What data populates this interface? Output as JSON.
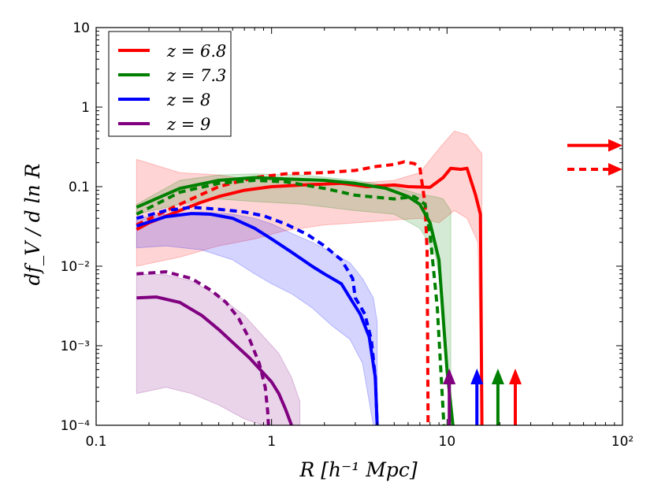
{
  "chart_data": {
    "type": "line",
    "xlabel": "R [h⁻¹ Mpc]",
    "ylabel": "df_V / d ln R",
    "xscale": "log",
    "yscale": "log",
    "xlim": [
      0.1,
      100
    ],
    "ylim": [
      0.0001,
      10
    ],
    "grid": false,
    "legend_position": "top-left",
    "x_tick_labels": [
      "0.1",
      "1",
      "10",
      "10²"
    ],
    "y_tick_labels": [
      "10⁻⁴",
      "10⁻³",
      "10⁻²",
      "0.1",
      "1",
      "10"
    ],
    "x_ticks": [
      0.1,
      1,
      10,
      100
    ],
    "y_ticks": [
      0.0001,
      0.001,
      0.01,
      0.1,
      1,
      10
    ],
    "series": [
      {
        "name": "z=6.8",
        "color": "#ff0000",
        "solid": [
          [
            0.17,
            0.029
          ],
          [
            0.2,
            0.035
          ],
          [
            0.3,
            0.05
          ],
          [
            0.4,
            0.064
          ],
          [
            0.5,
            0.075
          ],
          [
            0.7,
            0.09
          ],
          [
            1.0,
            0.1
          ],
          [
            1.5,
            0.105
          ],
          [
            2.5,
            0.11
          ],
          [
            3.5,
            0.1
          ],
          [
            5.0,
            0.105
          ],
          [
            6.0,
            0.1
          ],
          [
            8.0,
            0.098
          ],
          [
            9.5,
            0.13
          ],
          [
            10.5,
            0.17
          ],
          [
            12,
            0.165
          ],
          [
            13,
            0.17
          ],
          [
            14.5,
            0.08
          ],
          [
            15.5,
            0.045
          ],
          [
            15.8,
            0.0001
          ]
        ],
        "dashed": [
          [
            0.17,
            0.033
          ],
          [
            0.3,
            0.06
          ],
          [
            0.5,
            0.1
          ],
          [
            0.8,
            0.13
          ],
          [
            1.2,
            0.145
          ],
          [
            2.0,
            0.15
          ],
          [
            3.0,
            0.16
          ],
          [
            4.0,
            0.18
          ],
          [
            5.0,
            0.19
          ],
          [
            5.7,
            0.205
          ],
          [
            6.5,
            0.195
          ],
          [
            7.0,
            0.175
          ],
          [
            7.5,
            0.06
          ],
          [
            7.7,
            0.015
          ],
          [
            7.8,
            0.0001
          ]
        ],
        "band": [
          [
            0.17,
            0.01,
            0.22
          ],
          [
            0.3,
            0.013,
            0.15
          ],
          [
            0.5,
            0.018,
            0.14
          ],
          [
            0.8,
            0.022,
            0.12
          ],
          [
            1.2,
            0.028,
            0.12
          ],
          [
            2.0,
            0.033,
            0.11
          ],
          [
            3.0,
            0.035,
            0.11
          ],
          [
            5.0,
            0.038,
            0.12
          ],
          [
            7.0,
            0.04,
            0.15
          ],
          [
            9.0,
            0.035,
            0.3
          ],
          [
            11,
            0.05,
            0.5
          ],
          [
            13,
            0.04,
            0.45
          ],
          [
            15,
            0.02,
            0.3
          ],
          [
            15.8,
            0.0001,
            0.26
          ]
        ],
        "arrow_x": 24.5,
        "offscale_arrows": [
          {
            "style": "solid",
            "y": 0.33
          },
          {
            "style": "dashed",
            "y": 0.165
          }
        ]
      },
      {
        "name": "z=7.3",
        "color": "#008000",
        "solid": [
          [
            0.17,
            0.055
          ],
          [
            0.3,
            0.095
          ],
          [
            0.5,
            0.12
          ],
          [
            0.8,
            0.13
          ],
          [
            1.2,
            0.125
          ],
          [
            2.0,
            0.12
          ],
          [
            3.0,
            0.11
          ],
          [
            4.5,
            0.095
          ],
          [
            6.0,
            0.075
          ],
          [
            7.0,
            0.06
          ],
          [
            8.0,
            0.035
          ],
          [
            9.0,
            0.012
          ],
          [
            10.0,
            0.0005
          ],
          [
            10.8,
            0.0001
          ]
        ],
        "dashed": [
          [
            0.17,
            0.045
          ],
          [
            0.3,
            0.085
          ],
          [
            0.5,
            0.11
          ],
          [
            0.8,
            0.12
          ],
          [
            1.2,
            0.115
          ],
          [
            2.0,
            0.095
          ],
          [
            3.0,
            0.078
          ],
          [
            5.0,
            0.07
          ],
          [
            6.5,
            0.075
          ],
          [
            7.5,
            0.06
          ],
          [
            8.0,
            0.025
          ],
          [
            8.8,
            0.003
          ],
          [
            9.6,
            0.0001
          ]
        ],
        "band": [
          [
            0.17,
            0.045,
            0.06
          ],
          [
            0.3,
            0.06,
            0.12
          ],
          [
            0.5,
            0.07,
            0.14
          ],
          [
            0.8,
            0.065,
            0.145
          ],
          [
            1.5,
            0.06,
            0.14
          ],
          [
            3.0,
            0.05,
            0.12
          ],
          [
            5.0,
            0.045,
            0.1
          ],
          [
            7.0,
            0.03,
            0.08
          ],
          [
            8.5,
            0.015,
            0.075
          ],
          [
            9.5,
            0.004,
            0.07
          ],
          [
            10.5,
            0.0001,
            0.05
          ]
        ],
        "arrow_x": 19.5
      },
      {
        "name": "z=8",
        "color": "#0000ff",
        "solid": [
          [
            0.17,
            0.032
          ],
          [
            0.25,
            0.042
          ],
          [
            0.35,
            0.046
          ],
          [
            0.45,
            0.045
          ],
          [
            0.6,
            0.04
          ],
          [
            0.8,
            0.03
          ],
          [
            1.0,
            0.022
          ],
          [
            1.3,
            0.015
          ],
          [
            1.7,
            0.01
          ],
          [
            2.0,
            0.008
          ],
          [
            2.5,
            0.006
          ],
          [
            2.8,
            0.004
          ],
          [
            3.2,
            0.0025
          ],
          [
            3.6,
            0.0013
          ],
          [
            3.9,
            0.0004
          ],
          [
            4.0,
            0.0001
          ]
        ],
        "dashed": [
          [
            0.17,
            0.04
          ],
          [
            0.25,
            0.05
          ],
          [
            0.35,
            0.055
          ],
          [
            0.5,
            0.052
          ],
          [
            0.7,
            0.048
          ],
          [
            0.9,
            0.043
          ],
          [
            1.2,
            0.034
          ],
          [
            1.6,
            0.025
          ],
          [
            2.0,
            0.018
          ],
          [
            2.5,
            0.012
          ],
          [
            2.9,
            0.007
          ],
          [
            3.0,
            0.004
          ],
          [
            3.4,
            0.0025
          ],
          [
            3.7,
            0.0012
          ],
          [
            3.9,
            0.0004
          ],
          [
            4.0,
            0.0001
          ]
        ],
        "band": [
          [
            0.17,
            0.017,
            0.04
          ],
          [
            0.25,
            0.018,
            0.045
          ],
          [
            0.4,
            0.016,
            0.048
          ],
          [
            0.6,
            0.012,
            0.045
          ],
          [
            0.8,
            0.008,
            0.04
          ],
          [
            1.0,
            0.006,
            0.034
          ],
          [
            1.3,
            0.0045,
            0.026
          ],
          [
            1.7,
            0.003,
            0.02
          ],
          [
            2.2,
            0.0018,
            0.015
          ],
          [
            2.8,
            0.0012,
            0.011
          ],
          [
            3.3,
            0.0006,
            0.007
          ],
          [
            3.8,
            0.0001,
            0.004
          ],
          [
            4.0,
            0.0001,
            0.002
          ]
        ],
        "arrow_x": 14.8
      },
      {
        "name": "z=9",
        "color": "#800080",
        "solid": [
          [
            0.17,
            0.004
          ],
          [
            0.22,
            0.0041
          ],
          [
            0.3,
            0.0035
          ],
          [
            0.4,
            0.0024
          ],
          [
            0.5,
            0.0016
          ],
          [
            0.6,
            0.0011
          ],
          [
            0.75,
            0.0007
          ],
          [
            0.9,
            0.00045
          ],
          [
            1.0,
            0.00035
          ],
          [
            1.1,
            0.00025
          ],
          [
            1.2,
            0.00016
          ],
          [
            1.3,
            0.0001
          ]
        ],
        "dashed": [
          [
            0.17,
            0.008
          ],
          [
            0.25,
            0.0085
          ],
          [
            0.35,
            0.007
          ],
          [
            0.45,
            0.005
          ],
          [
            0.55,
            0.0035
          ],
          [
            0.65,
            0.0022
          ],
          [
            0.75,
            0.0012
          ],
          [
            0.85,
            0.0006
          ],
          [
            0.92,
            0.0003
          ],
          [
            0.95,
            0.00015
          ],
          [
            0.96,
            0.0001
          ]
        ],
        "band": [
          [
            0.17,
            0.00025,
            0.008
          ],
          [
            0.25,
            0.0003,
            0.0078
          ],
          [
            0.35,
            0.00025,
            0.0065
          ],
          [
            0.5,
            0.00018,
            0.0042
          ],
          [
            0.7,
            0.00012,
            0.0024
          ],
          [
            0.9,
            0.0001,
            0.0013
          ],
          [
            1.1,
            0.0001,
            0.0008
          ],
          [
            1.3,
            0.0001,
            0.0004
          ],
          [
            1.45,
            0.0001,
            0.0002
          ]
        ],
        "arrow_x": 10.3
      }
    ]
  },
  "legend": {
    "items": [
      {
        "label": "z = 6.8",
        "color": "#ff0000"
      },
      {
        "label": "z = 7.3",
        "color": "#008000"
      },
      {
        "label": "z = 8",
        "color": "#0000ff"
      },
      {
        "label": "z = 9",
        "color": "#800080"
      }
    ]
  }
}
